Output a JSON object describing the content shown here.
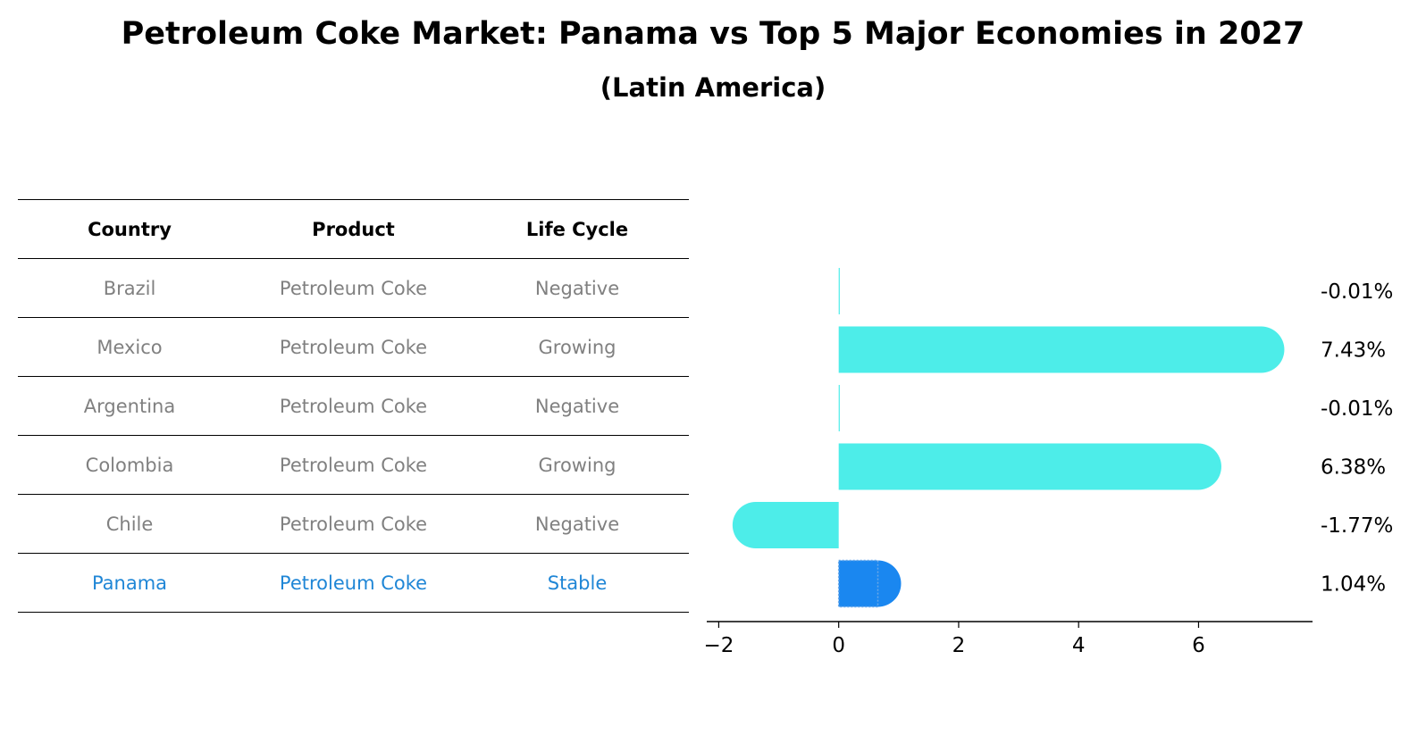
{
  "title": "Petroleum Coke Market: Panama vs Top 5 Major Economies in 2027",
  "subtitle": "(Latin America)",
  "table": {
    "headers": [
      "Country",
      "Product",
      "Life Cycle"
    ],
    "rows": [
      {
        "country": "Brazil",
        "product": "Petroleum Coke",
        "life_cycle": "Negative"
      },
      {
        "country": "Mexico",
        "product": "Petroleum Coke",
        "life_cycle": "Growing"
      },
      {
        "country": "Argentina",
        "product": "Petroleum Coke",
        "life_cycle": "Negative"
      },
      {
        "country": "Colombia",
        "product": "Petroleum Coke",
        "life_cycle": "Growing"
      },
      {
        "country": "Chile",
        "product": "Petroleum Coke",
        "life_cycle": "Negative"
      },
      {
        "country": "Panama",
        "product": "Petroleum Coke",
        "life_cycle": "Stable"
      }
    ]
  },
  "colors": {
    "bar": "#4dede9",
    "highlight_bar": "#1a87f0",
    "highlight_text": "#1f86d6",
    "muted_text": "#808080"
  },
  "chart_data": {
    "type": "bar",
    "orientation": "horizontal",
    "categories": [
      "Brazil",
      "Mexico",
      "Argentina",
      "Colombia",
      "Chile",
      "Panama"
    ],
    "values": [
      -0.01,
      7.43,
      -0.01,
      6.38,
      -1.77,
      1.04
    ],
    "value_labels": [
      "-0.01%",
      "7.43%",
      "-0.01%",
      "6.38%",
      "-1.77%",
      "1.04%"
    ],
    "highlight": "Panama",
    "xlim": [
      -2.2,
      7.9
    ],
    "xticks": [
      -2,
      0,
      2,
      4,
      6
    ],
    "xtick_labels": [
      "−2",
      "0",
      "2",
      "4",
      "6"
    ],
    "xlabel": "",
    "ylabel": "",
    "grid": false,
    "legend": "none"
  }
}
